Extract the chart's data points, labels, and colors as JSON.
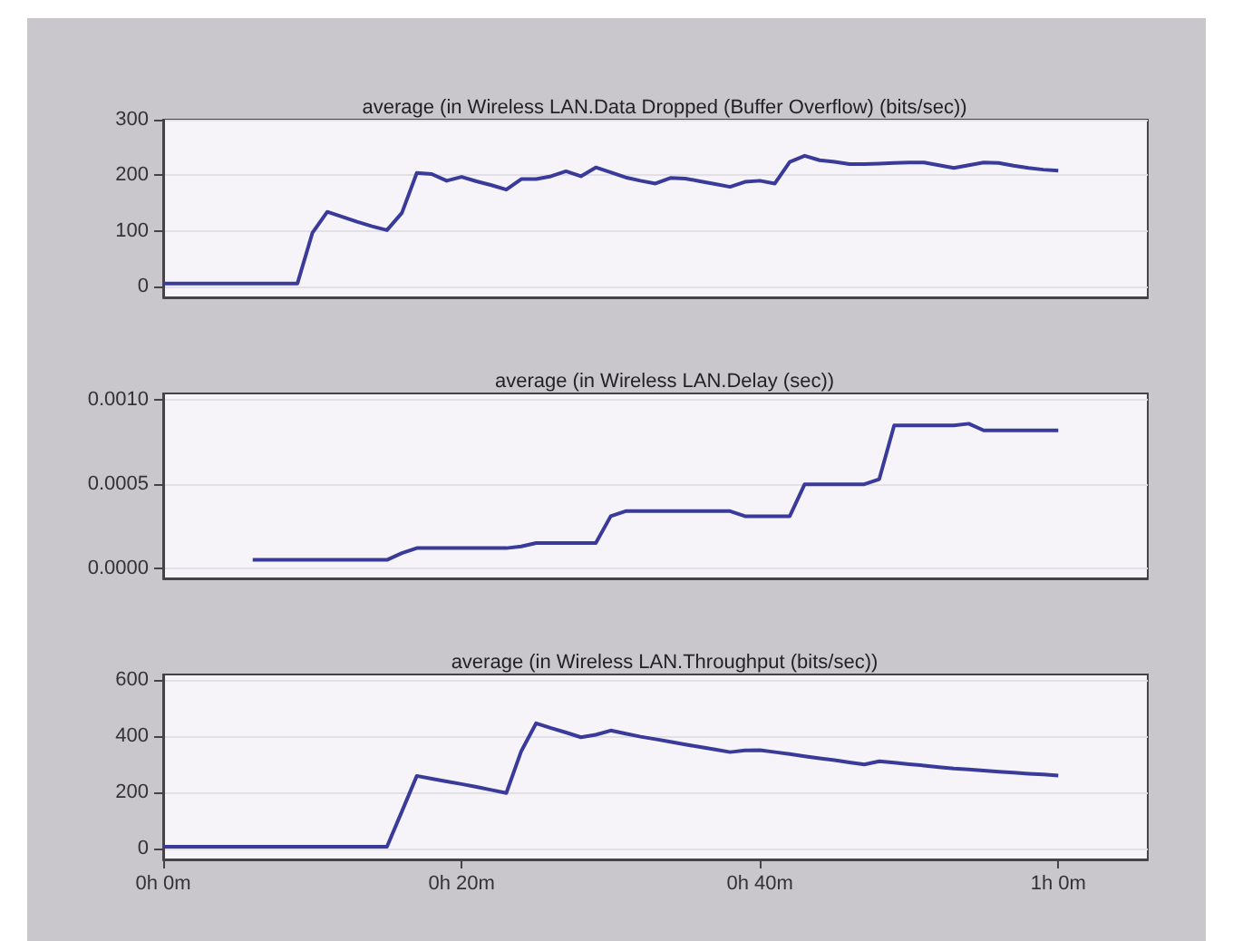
{
  "chart_data": [
    {
      "type": "line",
      "title": "average (in Wireless LAN.Data Dropped (Buffer Overflow) (bits/sec))",
      "color": "#3a3a9a",
      "grid": "y",
      "categories": [
        null,
        null,
        null,
        null,
        null,
        null,
        null,
        null,
        null,
        null,
        null,
        null,
        null,
        null,
        null,
        null,
        null,
        null,
        null,
        null,
        null,
        null,
        null,
        null,
        null,
        null,
        null,
        null,
        null,
        null,
        null,
        null,
        null,
        null,
        null,
        null,
        null,
        null,
        null,
        null,
        null,
        null,
        null,
        null,
        null,
        null,
        null,
        null,
        null,
        null,
        null,
        null,
        null,
        null,
        null,
        null,
        null,
        null,
        null,
        null,
        null,
        null,
        null,
        null,
        null,
        null,
        null
      ],
      "values": [
        5,
        5,
        5,
        5,
        5,
        5,
        5,
        5,
        5,
        5,
        96,
        134,
        125,
        116,
        108,
        101,
        132,
        204,
        202,
        190,
        197,
        189,
        182,
        174,
        193,
        193,
        198,
        207,
        198,
        214,
        205,
        196,
        190,
        185,
        195,
        194,
        189,
        184,
        179,
        188,
        190,
        185,
        224,
        235,
        227,
        224,
        220,
        220,
        221,
        222,
        223,
        223,
        218,
        213,
        218,
        223,
        222,
        217,
        213,
        210,
        208,
        null,
        null,
        null,
        null,
        null,
        null
      ],
      "ylim": [
        -20,
        300
      ],
      "yticks": [
        0,
        100,
        200,
        300
      ]
    },
    {
      "type": "line",
      "title": "average (in Wireless LAN.Delay (sec))",
      "color": "#3a3a9a",
      "grid": "y",
      "categories": [
        null,
        null,
        null,
        null,
        null,
        null,
        null,
        null,
        null,
        null,
        null,
        null,
        null,
        null,
        null,
        null,
        null,
        null,
        null,
        null,
        null,
        null,
        null,
        null,
        null,
        null,
        null,
        null,
        null,
        null,
        null,
        null,
        null,
        null,
        null,
        null,
        null,
        null,
        null,
        null,
        null,
        null,
        null,
        null,
        null,
        null,
        null,
        null,
        null,
        null,
        null,
        null,
        null,
        null,
        null,
        null,
        null,
        null,
        null,
        null,
        null,
        null,
        null,
        null,
        null,
        null,
        null
      ],
      "values": [
        null,
        null,
        null,
        null,
        null,
        null,
        5e-05,
        5e-05,
        5e-05,
        5e-05,
        5e-05,
        5e-05,
        5e-05,
        5e-05,
        5e-05,
        5e-05,
        9e-05,
        0.00012,
        0.00012,
        0.00012,
        0.00012,
        0.00012,
        0.00012,
        0.00012,
        0.00013,
        0.00015,
        0.00015,
        0.00015,
        0.00015,
        0.00015,
        0.00031,
        0.00034,
        0.00034,
        0.00034,
        0.00034,
        0.00034,
        0.00034,
        0.00034,
        0.00034,
        0.00031,
        0.00031,
        0.00031,
        0.00031,
        0.0005,
        0.0005,
        0.0005,
        0.0005,
        0.0005,
        0.00053,
        0.00085,
        0.00085,
        0.00085,
        0.00085,
        0.00085,
        0.00086,
        0.00082,
        0.00082,
        0.00082,
        0.00082,
        0.00082,
        0.00082,
        null,
        null,
        null,
        null,
        null,
        null
      ],
      "ylim": [
        -6e-05,
        0.00104
      ],
      "yticks": [
        {
          "value": 0,
          "label": "0.0000"
        },
        {
          "value": 0.0005,
          "label": "0.0005"
        },
        {
          "value": 0.001,
          "label": "0.0010"
        }
      ]
    },
    {
      "type": "line",
      "title": "average (in Wireless LAN.Throughput (bits/sec))",
      "color": "#3a3a9a",
      "grid": "y",
      "categories": [
        "0h 0m",
        null,
        null,
        null,
        null,
        null,
        null,
        null,
        null,
        null,
        null,
        null,
        null,
        null,
        null,
        null,
        null,
        null,
        null,
        null,
        "0h 20m",
        null,
        null,
        null,
        null,
        null,
        null,
        null,
        null,
        null,
        null,
        null,
        null,
        null,
        null,
        null,
        null,
        null,
        null,
        null,
        "0h 40m",
        null,
        null,
        null,
        null,
        null,
        null,
        null,
        null,
        null,
        null,
        null,
        null,
        null,
        null,
        null,
        null,
        null,
        null,
        null,
        "1h 0m",
        null,
        null,
        null,
        null,
        null,
        null
      ],
      "values": [
        5,
        5,
        5,
        5,
        5,
        5,
        5,
        5,
        5,
        5,
        5,
        5,
        5,
        5,
        5,
        5,
        131,
        258,
        248,
        238,
        229,
        219,
        208,
        197,
        346,
        446,
        429,
        413,
        396,
        405,
        420,
        409,
        398,
        389,
        380,
        370,
        361,
        352,
        343,
        349,
        350,
        343,
        336,
        328,
        321,
        314,
        306,
        299,
        310,
        305,
        300,
        295,
        289,
        284,
        281,
        277,
        273,
        270,
        266,
        263,
        259,
        null,
        null,
        null,
        null,
        null,
        null
      ],
      "ylim": [
        -40,
        620
      ],
      "yticks": [
        0,
        200,
        400,
        600
      ]
    }
  ]
}
